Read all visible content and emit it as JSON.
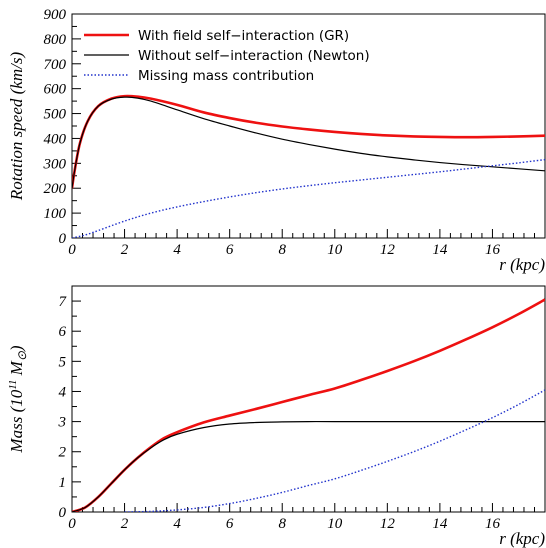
{
  "chart_data": [
    {
      "type": "line",
      "xlabel": "r (kpc)",
      "ylabel": "Rotation speed (km/s)",
      "xlim": [
        0,
        18
      ],
      "ylim": [
        0,
        900
      ],
      "xticks": [
        0,
        2,
        4,
        6,
        8,
        10,
        12,
        14,
        16
      ],
      "yticks": [
        0,
        100,
        200,
        300,
        400,
        500,
        600,
        700,
        800,
        900
      ],
      "legend_position": "top-left",
      "grid": false,
      "series": [
        {
          "name": "With field self−interaction (GR)",
          "color": "#ee1111",
          "style": "solid-thick",
          "x": [
            0,
            0.1,
            0.3,
            0.6,
            1,
            1.5,
            2,
            2.5,
            3,
            4,
            5,
            6,
            7,
            8,
            9,
            10,
            11,
            12,
            13,
            14,
            15,
            16,
            17,
            18
          ],
          "y": [
            200,
            270,
            380,
            470,
            530,
            560,
            570,
            568,
            560,
            535,
            505,
            482,
            463,
            448,
            436,
            426,
            418,
            412,
            408,
            406,
            405,
            406,
            408,
            411
          ]
        },
        {
          "name": "Without self−interaction (Newton)",
          "color": "#000000",
          "style": "solid-thin",
          "x": [
            0,
            0.1,
            0.3,
            0.6,
            1,
            1.5,
            2,
            2.5,
            3,
            4,
            5,
            6,
            7,
            8,
            9,
            10,
            11,
            12,
            13,
            14,
            15,
            16,
            17,
            18
          ],
          "y": [
            200,
            270,
            380,
            470,
            530,
            558,
            566,
            562,
            550,
            515,
            480,
            450,
            422,
            397,
            376,
            357,
            340,
            326,
            314,
            303,
            294,
            286,
            278,
            270
          ]
        },
        {
          "name": "Missing mass contribution",
          "color": "#2233cc",
          "style": "dotted",
          "x": [
            0,
            0.5,
            1,
            2,
            3,
            4,
            5,
            6,
            7,
            8,
            9,
            10,
            11,
            12,
            13,
            14,
            15,
            16,
            17,
            18
          ],
          "y": [
            0,
            12,
            30,
            68,
            100,
            125,
            146,
            165,
            182,
            197,
            210,
            222,
            233,
            244,
            255,
            266,
            278,
            290,
            302,
            315
          ]
        }
      ]
    },
    {
      "type": "line",
      "xlabel": "r (kpc)",
      "ylabel": "Mass  (10^11 M_⊙)",
      "ylabel_parts": {
        "main": "Mass  (10",
        "exp": "11",
        "unit": " M",
        "sub": "⊙",
        "close": ")"
      },
      "xlim": [
        0,
        18
      ],
      "ylim": [
        0,
        7.5
      ],
      "xticks": [
        0,
        2,
        4,
        6,
        8,
        10,
        12,
        14,
        16
      ],
      "yticks": [
        0,
        1,
        2,
        3,
        4,
        5,
        6,
        7
      ],
      "grid": false,
      "series": [
        {
          "name": "With field self−interaction (GR)",
          "color": "#ee1111",
          "style": "solid-thick",
          "x": [
            0,
            0.5,
            1,
            1.5,
            2,
            2.5,
            3,
            3.5,
            4,
            5,
            6,
            7,
            8,
            9,
            10,
            11,
            12,
            13,
            14,
            15,
            16,
            17,
            18
          ],
          "y": [
            0,
            0.15,
            0.5,
            0.95,
            1.4,
            1.8,
            2.15,
            2.45,
            2.65,
            2.97,
            3.2,
            3.42,
            3.65,
            3.88,
            4.1,
            4.38,
            4.68,
            5.0,
            5.35,
            5.73,
            6.13,
            6.57,
            7.05
          ]
        },
        {
          "name": "Without self−interaction (Newton)",
          "color": "#000000",
          "style": "solid-thin",
          "x": [
            0,
            0.5,
            1,
            1.5,
            2,
            2.5,
            3,
            3.5,
            4,
            5,
            6,
            7,
            8,
            9,
            10,
            12,
            14,
            16,
            18
          ],
          "y": [
            0,
            0.15,
            0.5,
            0.95,
            1.4,
            1.8,
            2.13,
            2.4,
            2.58,
            2.8,
            2.92,
            2.97,
            2.99,
            3.0,
            3.0,
            3.0,
            3.0,
            3.0,
            3.0
          ]
        },
        {
          "name": "Missing mass contribution",
          "color": "#2233cc",
          "style": "dotted",
          "x": [
            2,
            3,
            4,
            5,
            6,
            7,
            8,
            9,
            10,
            11,
            12,
            13,
            14,
            15,
            16,
            17,
            18
          ],
          "y": [
            0,
            0.02,
            0.07,
            0.15,
            0.28,
            0.45,
            0.65,
            0.88,
            1.1,
            1.38,
            1.68,
            2.0,
            2.35,
            2.73,
            3.13,
            3.57,
            4.05
          ]
        }
      ]
    }
  ]
}
